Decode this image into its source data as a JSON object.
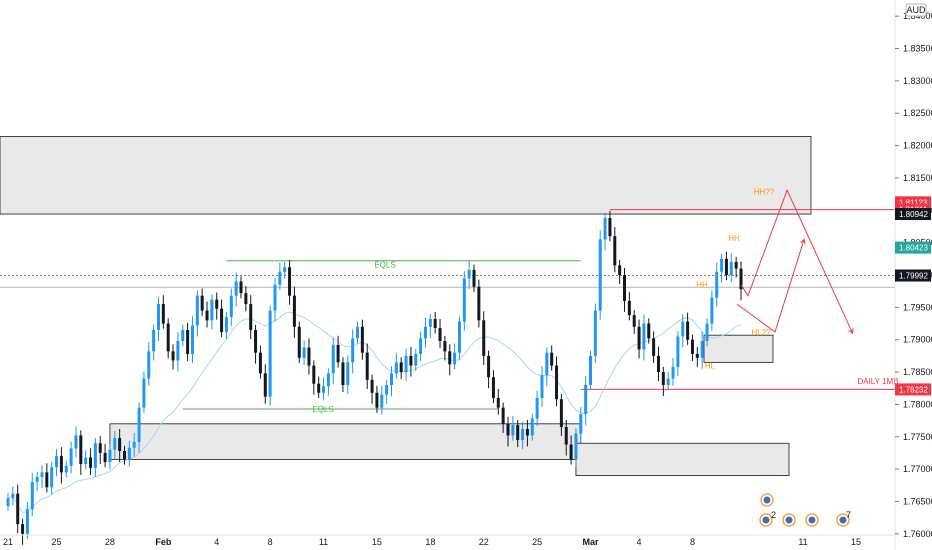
{
  "chart_data": {
    "type": "candlestick",
    "currency": "AUD",
    "ylim": [
      1.7575,
      1.8425
    ],
    "y_ticks": [
      "1.76000",
      "1.76500",
      "1.77000",
      "1.77500",
      "1.78000",
      "1.78500",
      "1.79000",
      "1.79500",
      "1.80000",
      "1.80500",
      "1.81000",
      "1.81500",
      "1.82000",
      "1.82500",
      "1.83000",
      "1.83500",
      "1.84000"
    ],
    "x_ticks": [
      "21",
      "25",
      "28",
      "Feb",
      "4",
      "8",
      "11",
      "15",
      "18",
      "22",
      "25",
      "Mar",
      "4",
      "8",
      "11",
      "15"
    ],
    "price_labels": [
      {
        "text": "1.81123",
        "value": 1.81123,
        "color": "#f23645"
      },
      {
        "text": "1.81011",
        "value": 1.81011,
        "color": "#f23645"
      },
      {
        "text": "1.80942",
        "value": 1.80942,
        "color": "#131722"
      },
      {
        "text": "1.80423",
        "value": 1.80423,
        "color": "#26a69a"
      },
      {
        "text": "1.79992",
        "value": 1.79992,
        "color": "#131722"
      },
      {
        "text": "1.78232",
        "value": 1.78232,
        "color": "#f23645"
      }
    ],
    "annotations": [
      {
        "text": "EQLS",
        "value": 1.8016,
        "color": "#4caf50"
      },
      {
        "text": "EQLS",
        "value": 1.7793,
        "color": "#4caf50"
      },
      {
        "text": "HH??",
        "value": 1.8129,
        "color": "#ff9800"
      },
      {
        "text": "HH",
        "value": 1.8057,
        "color": "#ff9800"
      },
      {
        "text": "HH",
        "value": 1.7985,
        "color": "#ff9800"
      },
      {
        "text": "HL??",
        "value": 1.7912,
        "color": "#ff9800"
      },
      {
        "text": "HL",
        "value": 1.786,
        "color": "#ff9800"
      },
      {
        "text": "DAILY 1MB",
        "value": 1.7836,
        "color": "#f23645"
      }
    ],
    "zones": [
      {
        "from": 1.80942,
        "to": 1.8214
      },
      {
        "from": 1.7715,
        "to": 1.777
      },
      {
        "from": 1.769,
        "to": 1.774
      },
      {
        "from": 1.7865,
        "to": 1.7907
      }
    ],
    "lines": [
      {
        "value": 1.81011,
        "color": "#f23645"
      },
      {
        "value": 1.78232,
        "color": "#f23645"
      },
      {
        "value": 1.8022,
        "color": "#4caf50"
      },
      {
        "value": 1.7793,
        "color": "#4caf50"
      },
      {
        "value": 1.79992,
        "color": "#787b86"
      },
      {
        "value": 1.7981,
        "color": "#b2b5be"
      }
    ],
    "event_badges": [
      "2",
      "7"
    ],
    "colors": {
      "up": "#2196f3",
      "down": "#131722",
      "ma": "#a8d8ee",
      "zone": "#e9e9ea"
    },
    "closes": [
      1.7655,
      1.7662,
      1.7615,
      1.76,
      1.7638,
      1.768,
      1.7688,
      1.7695,
      1.7672,
      1.7703,
      1.772,
      1.7695,
      1.7705,
      1.7732,
      1.7752,
      1.7708,
      1.7718,
      1.7702,
      1.774,
      1.7725,
      1.7711,
      1.773,
      1.7748,
      1.7728,
      1.7715,
      1.7733,
      1.7742,
      1.7795,
      1.784,
      1.7882,
      1.7915,
      1.7955,
      1.7925,
      1.7882,
      1.7868,
      1.7898,
      1.7915,
      1.7878,
      1.7922,
      1.7968,
      1.7945,
      1.793,
      1.7962,
      1.7948,
      1.7912,
      1.7935,
      1.7968,
      1.799,
      1.7972,
      1.7955,
      1.7915,
      1.788,
      1.7848,
      1.7812,
      1.7945,
      1.7985,
      1.8005,
      1.8012,
      1.7968,
      1.792,
      1.7872,
      1.7888,
      1.786,
      1.7832,
      1.7818,
      1.7828,
      1.7848,
      1.7892,
      1.7865,
      1.783,
      1.7865,
      1.7902,
      1.792,
      1.788,
      1.7838,
      1.7818,
      1.7795,
      1.7815,
      1.783,
      1.7848,
      1.7865,
      1.785,
      1.7875,
      1.786,
      1.7878,
      1.7902,
      1.792,
      1.7932,
      1.7918,
      1.7898,
      1.7882,
      1.7862,
      1.788,
      1.7928,
      1.7995,
      1.8008,
      1.7982,
      1.793,
      1.7875,
      1.7842,
      1.781,
      1.7795,
      1.777,
      1.7752,
      1.7768,
      1.7745,
      1.7762,
      1.7752,
      1.7778,
      1.781,
      1.7845,
      1.788,
      1.786,
      1.7808,
      1.7765,
      1.7738,
      1.7715,
      1.7755,
      1.7785,
      1.783,
      1.7875,
      1.7945,
      1.8055,
      1.8088,
      1.806,
      1.8015,
      1.8,
      1.796,
      1.7938,
      1.792,
      1.7885,
      1.7925,
      1.7902,
      1.7875,
      1.785,
      1.783,
      1.784,
      1.7858,
      1.7905,
      1.7928,
      1.79,
      1.7878,
      1.7872,
      1.7898,
      1.7925,
      1.7965,
      1.8005,
      1.8025,
      1.8,
      1.802,
      1.801,
      1.7978
    ]
  }
}
